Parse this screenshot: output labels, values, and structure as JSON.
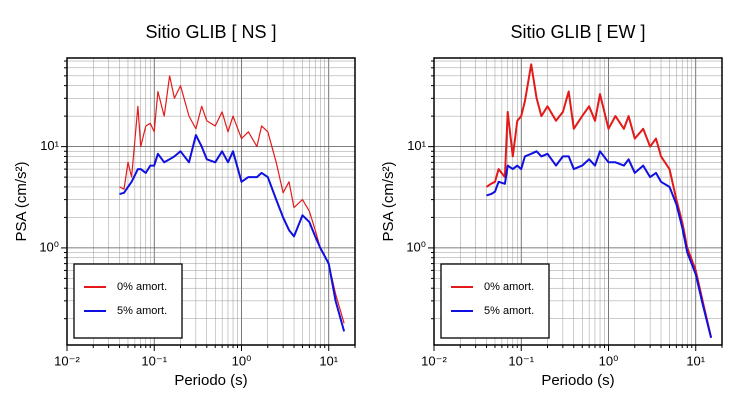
{
  "chart_data": [
    {
      "type": "line",
      "title": "Sitio GLIB [ NS ]",
      "x_label": "Periodo (s)",
      "y_label": "PSA (cm/s²)",
      "log_x": true,
      "log_y": true,
      "grid": true,
      "legend": "lower left",
      "xlim": [
        0.01,
        20
      ],
      "ylim": [
        0.11,
        75
      ],
      "xticks": [
        {
          "value": 0.01,
          "label": "10⁻²"
        },
        {
          "value": 0.1,
          "label": "10⁻¹"
        },
        {
          "value": 1,
          "label": "10⁰"
        },
        {
          "value": 10,
          "label": "10¹"
        }
      ],
      "yticks": [
        {
          "value": 1,
          "label": "10⁰"
        },
        {
          "value": 10,
          "label": "10¹"
        }
      ],
      "x": [
        0.04,
        0.045,
        0.05,
        0.055,
        0.065,
        0.07,
        0.08,
        0.09,
        0.1,
        0.11,
        0.13,
        0.15,
        0.17,
        0.2,
        0.25,
        0.3,
        0.35,
        0.4,
        0.5,
        0.6,
        0.7,
        0.8,
        1.0,
        1.2,
        1.5,
        1.7,
        2.0,
        2.5,
        3,
        3.5,
        4,
        5,
        6,
        7,
        8,
        10,
        12,
        15
      ],
      "series": [
        {
          "name": "0% amort.",
          "color": "#e41a1a",
          "width": 1.2,
          "values": [
            4,
            3.8,
            7,
            5,
            25,
            10,
            16,
            17,
            14,
            35,
            20,
            50,
            30,
            40,
            20,
            15,
            25,
            18,
            16,
            22,
            14,
            20,
            12,
            14,
            10,
            16,
            14,
            7,
            3.5,
            4.5,
            2.5,
            3,
            2.3,
            1.5,
            1,
            0.7,
            0.35,
            0.18
          ]
        },
        {
          "name": "5% amort.",
          "color": "#1010e0",
          "width": 2,
          "values": [
            3.4,
            3.5,
            4,
            4.5,
            6,
            6,
            5.5,
            6.5,
            6.5,
            8.5,
            7,
            7.5,
            8,
            9,
            7,
            13,
            10,
            7.5,
            7,
            9,
            7,
            9,
            4.5,
            5,
            5,
            5.5,
            5,
            3,
            2,
            1.5,
            1.3,
            2.1,
            1.8,
            1.3,
            1,
            0.7,
            0.3,
            0.15
          ]
        }
      ]
    },
    {
      "type": "line",
      "title": "Sitio GLIB [ EW ]",
      "x_label": "Periodo (s)",
      "y_label": "PSA (cm/s²)",
      "log_x": true,
      "log_y": true,
      "grid": true,
      "legend": "lower left",
      "xlim": [
        0.01,
        20
      ],
      "ylim": [
        0.11,
        75
      ],
      "xticks": [
        {
          "value": 0.01,
          "label": "10⁻²"
        },
        {
          "value": 0.1,
          "label": "10⁻¹"
        },
        {
          "value": 1,
          "label": "10⁰"
        },
        {
          "value": 10,
          "label": "10¹"
        }
      ],
      "yticks": [
        {
          "value": 1,
          "label": "10⁰"
        },
        {
          "value": 10,
          "label": "10¹"
        }
      ],
      "x": [
        0.04,
        0.045,
        0.05,
        0.055,
        0.065,
        0.07,
        0.08,
        0.09,
        0.1,
        0.11,
        0.13,
        0.15,
        0.17,
        0.2,
        0.25,
        0.3,
        0.35,
        0.4,
        0.5,
        0.6,
        0.7,
        0.8,
        1.0,
        1.2,
        1.5,
        1.7,
        2.0,
        2.5,
        3,
        3.5,
        4,
        5,
        6,
        7,
        8,
        10,
        12,
        15
      ],
      "series": [
        {
          "name": "0% amort.",
          "color": "#e41a1a",
          "width": 2,
          "values": [
            4,
            4.3,
            4.5,
            6,
            5,
            22,
            8,
            18,
            20,
            28,
            65,
            30,
            20,
            25,
            18,
            22,
            35,
            15,
            20,
            25,
            18,
            33,
            15,
            20,
            15,
            20,
            12,
            15,
            10,
            12,
            8,
            6,
            3,
            1.8,
            1,
            0.6,
            0.3,
            0.13
          ]
        },
        {
          "name": "5% amort.",
          "color": "#1010e0",
          "width": 2,
          "values": [
            3.3,
            3.4,
            3.6,
            4.5,
            4.3,
            6.5,
            6,
            6.5,
            6,
            8,
            8.5,
            9,
            8,
            8.5,
            6.5,
            8,
            8,
            6,
            6.5,
            7.5,
            6.5,
            9,
            7,
            7,
            6.5,
            7.5,
            5.5,
            6.5,
            5,
            5.5,
            4.5,
            4,
            2.7,
            1.6,
            0.9,
            0.55,
            0.28,
            0.13
          ]
        }
      ]
    }
  ]
}
